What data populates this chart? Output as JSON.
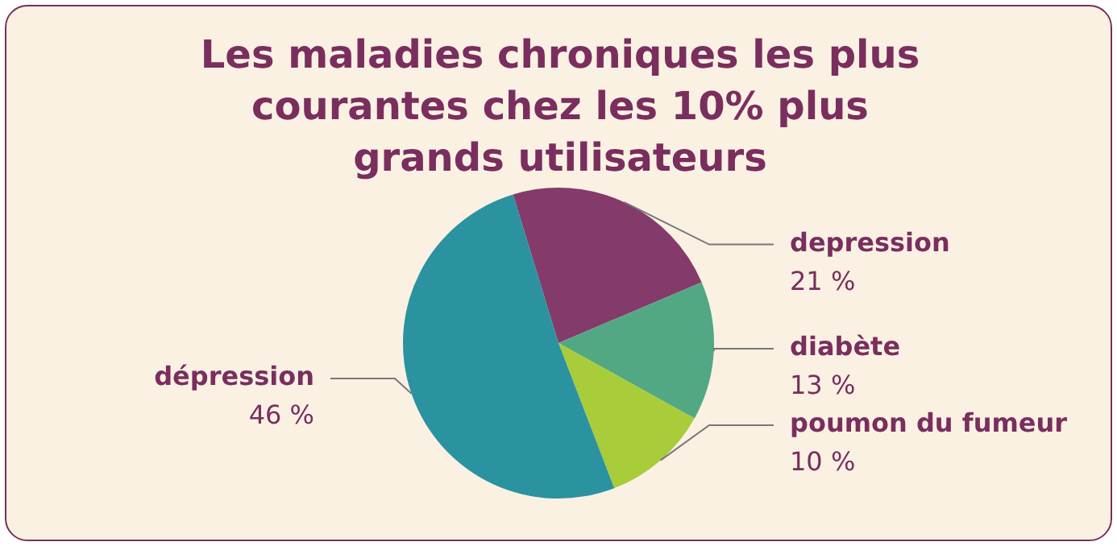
{
  "chart_data": {
    "type": "pie",
    "title": "Les maladies chroniques les plus courantes chez les 10% plus grands utilisateurs",
    "categories": [
      "depression",
      "diabète",
      "poumon du fumeur",
      "dépression"
    ],
    "values": [
      21,
      13,
      10,
      46
    ],
    "value_labels": [
      "21 %",
      "13 %",
      "10 %",
      "46 %"
    ],
    "colors": [
      "#843a6a",
      "#52a882",
      "#a8cc3a",
      "#2b92a0"
    ],
    "legend": false
  }
}
